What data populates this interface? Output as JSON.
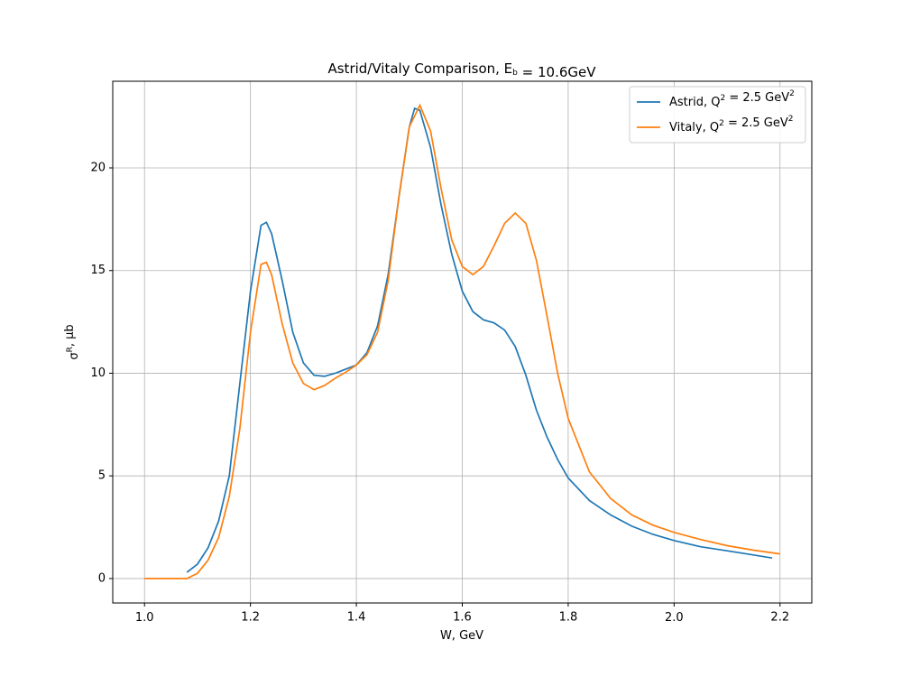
{
  "chart_data": {
    "type": "line",
    "title": "Astrid/Vitaly Comparison, E_b = 10.6GeV",
    "x_label": "W, GeV",
    "y_label": "σ^R, μb",
    "xlim": [
      0.94,
      2.26
    ],
    "ylim": [
      -1.19,
      24.22
    ],
    "xticks": [
      {
        "value": 1.0,
        "label": "1.0"
      },
      1.2,
      1.4,
      1.6,
      1.8,
      {
        "value": 2.0,
        "label": "2.0"
      },
      2.2
    ],
    "yticks": [
      0,
      5,
      10,
      15,
      20
    ],
    "grid": true,
    "legend": "upper right",
    "series": [
      {
        "name": "Astrid, Q^2 = 2.5 GeV^2",
        "color": "#1f77b4",
        "x": [
          1.08,
          1.1,
          1.12,
          1.14,
          1.16,
          1.18,
          1.2,
          1.22,
          1.23,
          1.24,
          1.26,
          1.28,
          1.3,
          1.32,
          1.34,
          1.36,
          1.38,
          1.4,
          1.42,
          1.44,
          1.46,
          1.48,
          1.5,
          1.51,
          1.52,
          1.54,
          1.56,
          1.58,
          1.6,
          1.62,
          1.64,
          1.66,
          1.68,
          1.7,
          1.72,
          1.74,
          1.76,
          1.78,
          1.8,
          1.84,
          1.88,
          1.92,
          1.96,
          2.0,
          2.05,
          2.1,
          2.15,
          2.185
        ],
        "values": [
          0.3,
          0.7,
          1.5,
          2.8,
          5.0,
          9.5,
          14.0,
          17.2,
          17.35,
          16.8,
          14.5,
          12.0,
          10.5,
          9.9,
          9.85,
          10.0,
          10.2,
          10.4,
          11.0,
          12.3,
          14.8,
          18.5,
          22.0,
          22.9,
          22.8,
          21.0,
          18.2,
          15.8,
          14.0,
          13.0,
          12.6,
          12.45,
          12.1,
          11.3,
          9.9,
          8.2,
          6.9,
          5.8,
          4.9,
          3.8,
          3.1,
          2.55,
          2.15,
          1.85,
          1.55,
          1.35,
          1.15,
          1.0
        ]
      },
      {
        "name": "Vitaly, Q^2 = 2.5 GeV^2",
        "color": "#ff7f0e",
        "x": [
          1.0,
          1.04,
          1.08,
          1.1,
          1.12,
          1.14,
          1.16,
          1.18,
          1.2,
          1.22,
          1.23,
          1.24,
          1.26,
          1.28,
          1.3,
          1.32,
          1.34,
          1.36,
          1.38,
          1.4,
          1.42,
          1.44,
          1.46,
          1.48,
          1.5,
          1.52,
          1.54,
          1.56,
          1.58,
          1.6,
          1.62,
          1.64,
          1.66,
          1.68,
          1.7,
          1.72,
          1.74,
          1.76,
          1.78,
          1.8,
          1.84,
          1.88,
          1.92,
          1.96,
          2.0,
          2.05,
          2.1,
          2.15,
          2.2
        ],
        "values": [
          0,
          0,
          0,
          0.25,
          0.9,
          2.0,
          4.0,
          7.3,
          12.0,
          15.3,
          15.4,
          14.8,
          12.4,
          10.5,
          9.5,
          9.2,
          9.4,
          9.75,
          10.05,
          10.4,
          10.9,
          12.0,
          14.5,
          18.5,
          22.0,
          23.05,
          21.8,
          19.0,
          16.5,
          15.2,
          14.8,
          15.2,
          16.2,
          17.3,
          17.8,
          17.3,
          15.5,
          12.8,
          10.0,
          7.8,
          5.2,
          3.9,
          3.1,
          2.6,
          2.25,
          1.9,
          1.6,
          1.38,
          1.2
        ]
      }
    ]
  }
}
